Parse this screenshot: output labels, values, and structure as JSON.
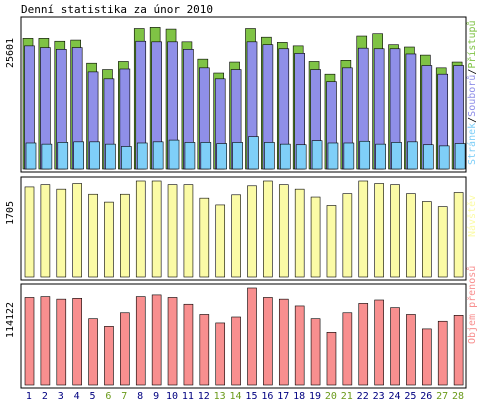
{
  "title": "Denní statistika za únor 2010",
  "colors": {
    "background": "#ffffff",
    "frame": "#000000",
    "hits": "#7fc345",
    "files": "#8f8fe8",
    "pages": "#7fcff8",
    "visits": "#fbfba6",
    "kbytes": "#f88f8f",
    "weekday_label": "#000080",
    "weekend_label": "#6a9a1a"
  },
  "chart_data": [
    {
      "type": "bar",
      "name": "hits-files-pages",
      "y_scale_label": "25601",
      "ylim": [
        0,
        25601
      ],
      "legend_text": [
        "Stránek",
        "/",
        "Souborů",
        "/",
        "Přístupů"
      ],
      "legend_colors": [
        "#7fcff8",
        "#000000",
        "#8f8fe8",
        "#000000",
        "#7fc345"
      ],
      "series": [
        {
          "name": "Přístupů",
          "values": [
            22600,
            22600,
            22100,
            22300,
            18300,
            17200,
            18600,
            24300,
            24500,
            24200,
            22000,
            19000,
            16600,
            18500,
            24300,
            22800,
            21900,
            21300,
            18600,
            16400,
            18800,
            23000,
            23400,
            21500,
            21100,
            19700,
            17500,
            18500
          ]
        },
        {
          "name": "Souborů",
          "values": [
            21300,
            21000,
            20700,
            21000,
            16800,
            15600,
            17300,
            22100,
            22000,
            22000,
            20700,
            17500,
            15600,
            17200,
            22000,
            21500,
            20800,
            20000,
            17200,
            15100,
            17500,
            20900,
            20800,
            20800,
            19900,
            17900,
            16400,
            17900
          ]
        },
        {
          "name": "Stránek",
          "values": [
            4500,
            4300,
            4600,
            4700,
            4700,
            4300,
            3900,
            4500,
            4700,
            5000,
            4600,
            4600,
            4400,
            4600,
            5600,
            4600,
            4300,
            4200,
            4900,
            4500,
            4500,
            4800,
            4300,
            4600,
            4700,
            4200,
            4000,
            4400
          ]
        }
      ]
    },
    {
      "type": "bar",
      "name": "visits",
      "y_scale_label": "1705",
      "ylim": [
        0,
        1705
      ],
      "legend_text": [
        "Návštěv"
      ],
      "legend_colors": [
        "#fbfba6"
      ],
      "series": [
        {
          "name": "Návštěv",
          "values": [
            1600,
            1640,
            1560,
            1660,
            1470,
            1330,
            1470,
            1705,
            1705,
            1640,
            1640,
            1400,
            1280,
            1460,
            1620,
            1705,
            1640,
            1560,
            1420,
            1270,
            1480,
            1705,
            1660,
            1640,
            1480,
            1340,
            1250,
            1500
          ]
        }
      ]
    },
    {
      "type": "bar",
      "name": "kbytes",
      "y_scale_label": "114122",
      "ylim": [
        0,
        114122
      ],
      "legend_text": [
        "Objem přenosů"
      ],
      "legend_colors": [
        "#f88f8f"
      ],
      "series": [
        {
          "name": "Objem přenosů",
          "values": [
            103000,
            104000,
            101000,
            102000,
            78000,
            69000,
            85000,
            104000,
            106000,
            103000,
            95000,
            83000,
            73000,
            80000,
            114122,
            103000,
            101000,
            93000,
            78000,
            62000,
            85000,
            96000,
            100000,
            91000,
            83000,
            66000,
            75000,
            82000
          ]
        }
      ]
    }
  ],
  "x_labels": [
    "1",
    "2",
    "3",
    "4",
    "5",
    "6",
    "7",
    "8",
    "9",
    "10",
    "11",
    "12",
    "13",
    "14",
    "15",
    "16",
    "17",
    "18",
    "19",
    "20",
    "21",
    "22",
    "23",
    "24",
    "25",
    "26",
    "27",
    "28"
  ],
  "weekend_days": [
    "6",
    "7",
    "13",
    "14",
    "20",
    "21",
    "27",
    "28"
  ]
}
